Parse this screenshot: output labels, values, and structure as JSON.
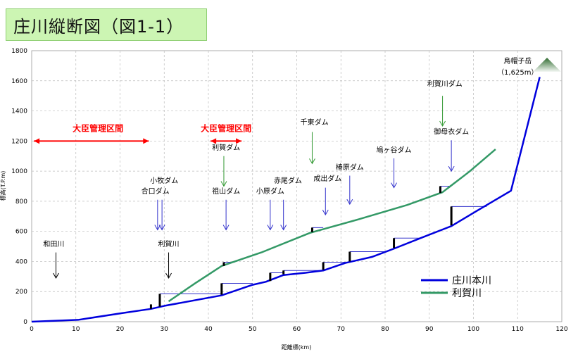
{
  "title": "庄川縦断図（図1-1）",
  "chart_data": {
    "type": "line",
    "title": "庄川縦断図（図1-1）",
    "xlabel": "距離標(km)",
    "ylabel": "標高(T.P.m)",
    "xlim": [
      0,
      120
    ],
    "ylim": [
      0,
      1800
    ],
    "xticks": [
      0,
      10,
      20,
      30,
      40,
      50,
      60,
      70,
      80,
      90,
      100,
      110,
      120
    ],
    "yticks": [
      0,
      200,
      400,
      600,
      800,
      1000,
      1200,
      1400,
      1600,
      1800
    ],
    "grid": true,
    "legend_position": "bottom-right",
    "series": [
      {
        "name": "庄川本川",
        "color": "#0000dd",
        "x": [
          0,
          10.5,
          20,
          27,
          30,
          43,
          50,
          53,
          57,
          62,
          66,
          71,
          77,
          82,
          88,
          95,
          101,
          108.5,
          115
        ],
        "y": [
          0,
          12,
          55,
          85,
          105,
          175,
          245,
          265,
          310,
          325,
          340,
          390,
          430,
          485,
          555,
          635,
          740,
          870,
          1625
        ]
      },
      {
        "name": "利賀川",
        "color": "#339966",
        "x": [
          31,
          37,
          43,
          52,
          63,
          74,
          85,
          93,
          99,
          105
        ],
        "y": [
          135,
          255,
          370,
          460,
          590,
          680,
          775,
          860,
          995,
          1145
        ]
      }
    ],
    "dams": [
      {
        "x": 27,
        "bottom": 85,
        "top": 115
      },
      {
        "x": 29,
        "bottom": 100,
        "top": 185,
        "pool_end": 43
      },
      {
        "x": 43,
        "bottom": 180,
        "top": 255,
        "pool_end": 50
      },
      {
        "x": 43.5,
        "bottom": 370,
        "top": 395,
        "pool_end": 46
      },
      {
        "x": 54,
        "bottom": 270,
        "top": 325,
        "pool_end": 57
      },
      {
        "x": 57,
        "bottom": 315,
        "top": 340,
        "pool_end": 66
      },
      {
        "x": 63.5,
        "bottom": 595,
        "top": 625,
        "pool_end": 66
      },
      {
        "x": 66,
        "bottom": 345,
        "top": 395,
        "pool_end": 71
      },
      {
        "x": 72,
        "bottom": 400,
        "top": 465,
        "pool_end": 80
      },
      {
        "x": 82,
        "bottom": 490,
        "top": 555,
        "pool_end": 88
      },
      {
        "x": 92.5,
        "bottom": 855,
        "top": 900,
        "pool_end": 94.5
      },
      {
        "x": 95,
        "bottom": 640,
        "top": 765,
        "pool_end": 103
      }
    ],
    "annotations": [
      {
        "text": "大臣管理区間",
        "x": 15,
        "y": 1265,
        "color": "#ff0000",
        "arrow": "both",
        "x1": 0.5,
        "x2": 26.5,
        "ay": 1200
      },
      {
        "text": "大臣管理区間",
        "x": 44,
        "y": 1265,
        "color": "#ff0000",
        "arrow": "both",
        "x1": 40.5,
        "x2": 47.5,
        "ay": 1200
      },
      {
        "text": "和田川",
        "x": 5,
        "y": 500,
        "color": "#000000",
        "arrow": "down",
        "ax": 5.5,
        "a1": 460,
        "a2": 290
      },
      {
        "text": "利賀川",
        "x": 31,
        "y": 500,
        "color": "#000000",
        "arrow": "down",
        "ax": 31,
        "a1": 460,
        "a2": 290
      },
      {
        "text": "小牧ダム",
        "x": 30,
        "y": 920,
        "color": "#000000",
        "arrow": "down-blue",
        "ax": 29.5,
        "a1": 810,
        "a2": 610
      },
      {
        "text": "合口ダム",
        "x": 28,
        "y": 850,
        "color": "#000000",
        "arrow": "down-blue",
        "ax": 28.5,
        "a1": 810,
        "a2": 610
      },
      {
        "text": "利賀ダム",
        "x": 44,
        "y": 1140,
        "color": "#000000",
        "arrow": "down-green",
        "ax": 43.5,
        "a1": 1100,
        "a2": 900
      },
      {
        "text": "祖山ダム",
        "x": 44,
        "y": 850,
        "color": "#000000",
        "arrow": "down-blue",
        "ax": 44,
        "a1": 810,
        "a2": 610
      },
      {
        "text": "赤尾ダム",
        "x": 58,
        "y": 920,
        "color": "#000000",
        "arrow": "down-blue",
        "ax": 57,
        "a1": 810,
        "a2": 610
      },
      {
        "text": "小原ダム",
        "x": 54,
        "y": 850,
        "color": "#000000",
        "arrow": "down-blue",
        "ax": 54,
        "a1": 810,
        "a2": 610
      },
      {
        "text": "千東ダム",
        "x": 64,
        "y": 1310,
        "color": "#000000",
        "arrow": "down-green",
        "ax": 63.5,
        "a1": 1260,
        "a2": 1050
      },
      {
        "text": "成出ダム",
        "x": 67,
        "y": 935,
        "color": "#000000",
        "arrow": "down-blue",
        "ax": 66.5,
        "a1": 890,
        "a2": 710
      },
      {
        "text": "椿原ダム",
        "x": 72,
        "y": 1010,
        "color": "#000000",
        "arrow": "down-blue",
        "ax": 72,
        "a1": 970,
        "a2": 780
      },
      {
        "text": "鳩ヶ谷ダム",
        "x": 82,
        "y": 1125,
        "color": "#000000",
        "arrow": "down-blue",
        "ax": 82,
        "a1": 1085,
        "a2": 890
      },
      {
        "text": "利賀川ダム",
        "x": 93.5,
        "y": 1565,
        "color": "#000000",
        "arrow": "down-green",
        "ax": 93,
        "a1": 1500,
        "a2": 1300
      },
      {
        "text": "御母衣ダム",
        "x": 95,
        "y": 1245,
        "color": "#000000",
        "arrow": "down-blue",
        "ax": 95,
        "a1": 1205,
        "a2": 1000
      },
      {
        "text": "烏帽子岳",
        "x": 110,
        "y": 1715,
        "color": "#000000"
      },
      {
        "text": "（1,625m）",
        "x": 110,
        "y": 1640,
        "color": "#000000"
      }
    ]
  }
}
